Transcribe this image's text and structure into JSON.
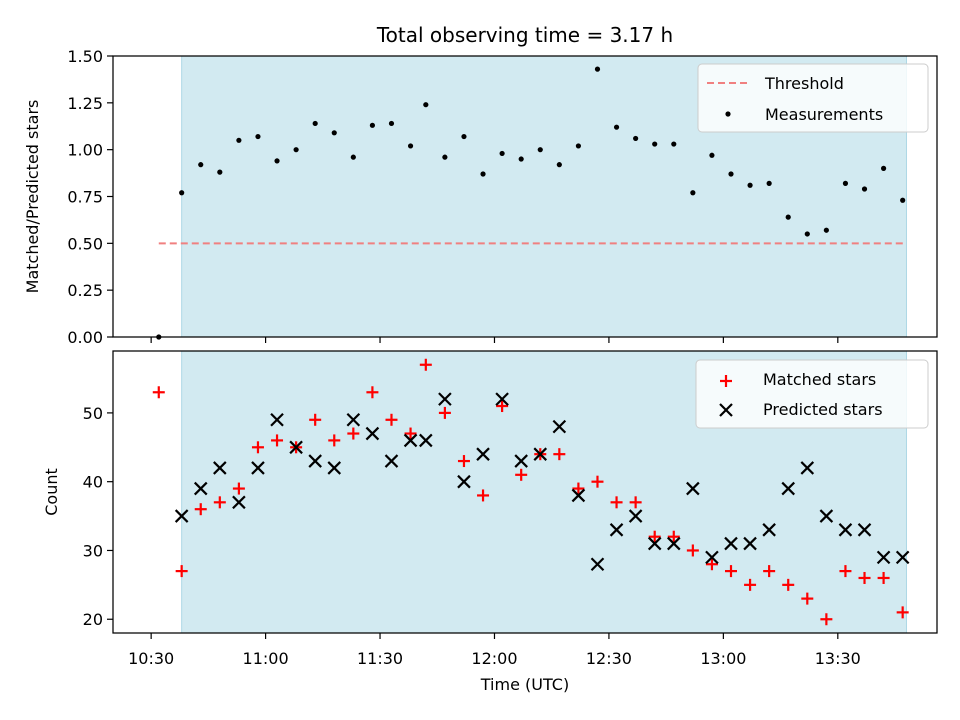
{
  "chart_data": {
    "title": "Total observing time = 3.17 h",
    "type": "scatter",
    "colors": {
      "shade": "#add8e6",
      "threshold": "#f08080",
      "measurements": "#000000",
      "matched": "#ff0000",
      "predicted": "#000000"
    },
    "shaded_interval": [
      "10:38",
      "13:48"
    ],
    "x_ticks": [
      "10:30",
      "11:00",
      "11:30",
      "12:00",
      "12:30",
      "13:00",
      "13:30"
    ],
    "xlabel": "Time (UTC)",
    "top": {
      "ylabel": "Matched/Predicted stars",
      "ylim": [
        0,
        1.5
      ],
      "y_ticks": [
        "0.00",
        "0.25",
        "0.50",
        "0.75",
        "1.00",
        "1.25",
        "1.50"
      ],
      "grid": false,
      "legend_placement": "top-right",
      "legend": {
        "threshold": "Threshold",
        "measurements": "Measurements"
      },
      "threshold": {
        "name": "Threshold",
        "value": 0.5,
        "x_range": [
          "10:32",
          "13:48"
        ]
      },
      "measurements": {
        "name": "Measurements",
        "x": [
          "10:32",
          "10:38",
          "10:43",
          "10:48",
          "10:53",
          "10:58",
          "11:03",
          "11:08",
          "11:13",
          "11:18",
          "11:23",
          "11:28",
          "11:33",
          "11:38",
          "11:42",
          "11:47",
          "11:52",
          "11:57",
          "12:02",
          "12:07",
          "12:12",
          "12:17",
          "12:22",
          "12:27",
          "12:32",
          "12:37",
          "12:42",
          "12:47",
          "12:52",
          "12:57",
          "13:02",
          "13:07",
          "13:12",
          "13:17",
          "13:22",
          "13:27",
          "13:32",
          "13:37",
          "13:42",
          "13:47"
        ],
        "y": [
          0.0,
          0.77,
          0.92,
          0.88,
          1.05,
          1.07,
          0.94,
          1.0,
          1.14,
          1.09,
          0.96,
          1.13,
          1.14,
          1.02,
          1.24,
          0.96,
          1.07,
          0.87,
          0.98,
          0.95,
          1.0,
          0.92,
          1.02,
          1.43,
          1.12,
          1.06,
          1.03,
          1.03,
          0.77,
          0.97,
          0.87,
          0.81,
          0.82,
          0.64,
          0.55,
          0.57,
          0.82,
          0.79,
          0.9,
          0.73
        ]
      }
    },
    "bottom": {
      "ylabel": "Count",
      "ylim": [
        18,
        59
      ],
      "y_ticks": [
        "20",
        "30",
        "40",
        "50"
      ],
      "grid": false,
      "legend_placement": "top-right",
      "legend": {
        "matched": "Matched stars",
        "predicted": "Predicted stars"
      },
      "matched": {
        "name": "Matched stars",
        "x": [
          "10:32",
          "10:38",
          "10:43",
          "10:48",
          "10:53",
          "10:58",
          "11:03",
          "11:08",
          "11:13",
          "11:18",
          "11:23",
          "11:28",
          "11:33",
          "11:38",
          "11:42",
          "11:47",
          "11:52",
          "11:57",
          "12:02",
          "12:07",
          "12:12",
          "12:17",
          "12:22",
          "12:27",
          "12:32",
          "12:37",
          "12:42",
          "12:47",
          "12:52",
          "12:57",
          "13:02",
          "13:07",
          "13:12",
          "13:17",
          "13:22",
          "13:27",
          "13:32",
          "13:37",
          "13:42",
          "13:47"
        ],
        "y": [
          53,
          27,
          36,
          37,
          39,
          45,
          46,
          45,
          49,
          46,
          47,
          53,
          49,
          47,
          57,
          50,
          43,
          38,
          51,
          41,
          44,
          44,
          39,
          40,
          37,
          37,
          32,
          32,
          30,
          28,
          27,
          25,
          27,
          25,
          23,
          20,
          27,
          26,
          26,
          21
        ]
      },
      "predicted": {
        "name": "Predicted stars",
        "x": [
          "10:38",
          "10:43",
          "10:48",
          "10:53",
          "10:58",
          "11:03",
          "11:08",
          "11:13",
          "11:18",
          "11:23",
          "11:28",
          "11:33",
          "11:38",
          "11:42",
          "11:47",
          "11:52",
          "11:57",
          "12:02",
          "12:07",
          "12:12",
          "12:17",
          "12:22",
          "12:27",
          "12:32",
          "12:37",
          "12:42",
          "12:47",
          "12:52",
          "12:57",
          "13:02",
          "13:07",
          "13:12",
          "13:17",
          "13:22",
          "13:27",
          "13:32",
          "13:37",
          "13:42",
          "13:47"
        ],
        "y": [
          35,
          39,
          42,
          37,
          42,
          49,
          45,
          43,
          42,
          49,
          47,
          43,
          46,
          46,
          52,
          40,
          44,
          52,
          43,
          44,
          48,
          38,
          28,
          33,
          35,
          31,
          31,
          39,
          29,
          31,
          31,
          33,
          39,
          42,
          35,
          33,
          33,
          29,
          29
        ]
      }
    }
  }
}
